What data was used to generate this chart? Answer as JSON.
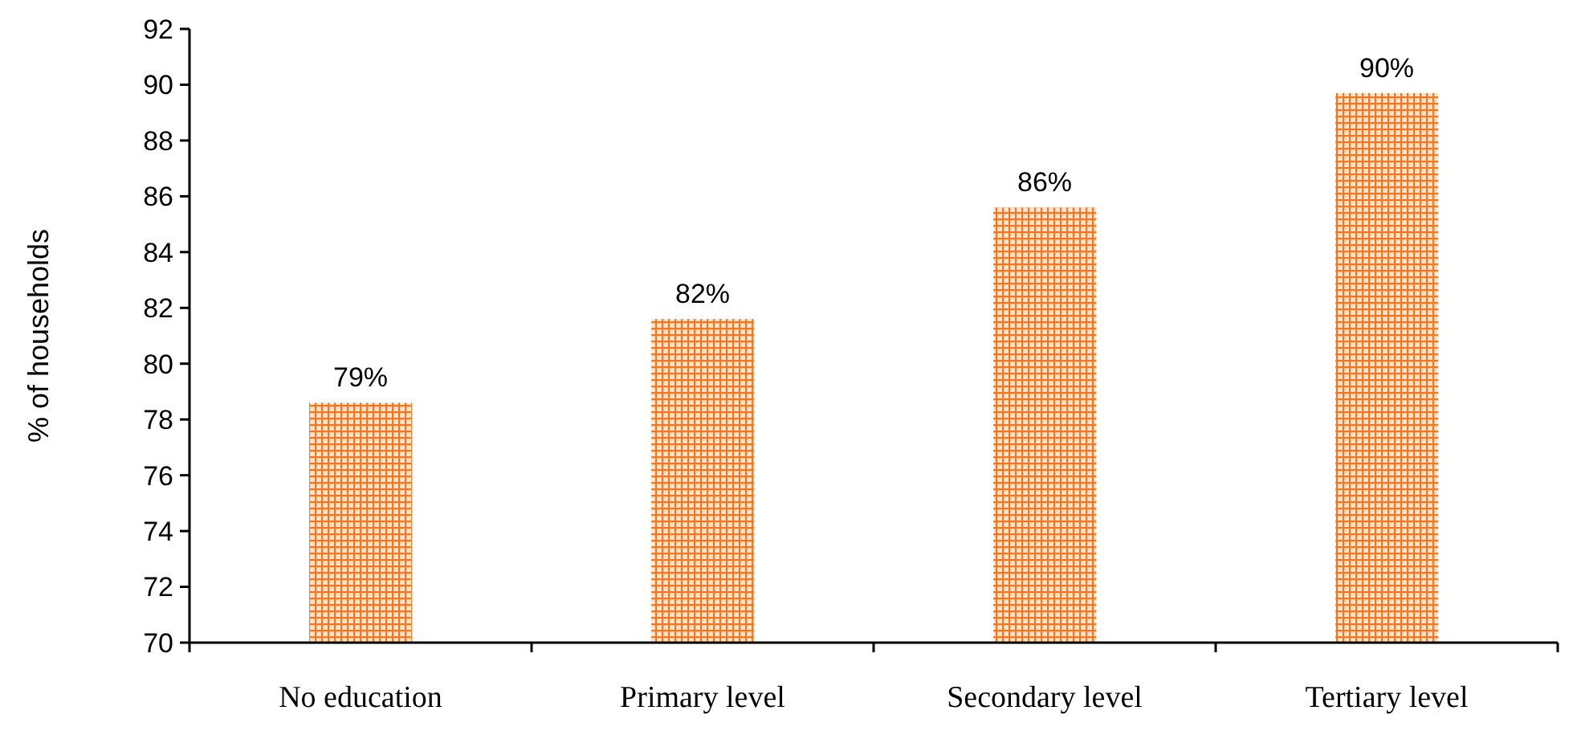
{
  "chart_data": {
    "type": "bar",
    "ylabel": "% of households",
    "categories": [
      "No education",
      "Primary level",
      "Secondary level",
      "Tertiary level"
    ],
    "values": [
      78.6,
      81.6,
      85.6,
      89.7
    ],
    "value_labels": [
      "79%",
      "82%",
      "86%",
      "90%"
    ],
    "color": "#f07820",
    "ylim": [
      70,
      92
    ],
    "yticks": [
      70,
      72,
      74,
      76,
      78,
      80,
      82,
      84,
      86,
      88,
      90,
      92
    ],
    "grid": false
  }
}
